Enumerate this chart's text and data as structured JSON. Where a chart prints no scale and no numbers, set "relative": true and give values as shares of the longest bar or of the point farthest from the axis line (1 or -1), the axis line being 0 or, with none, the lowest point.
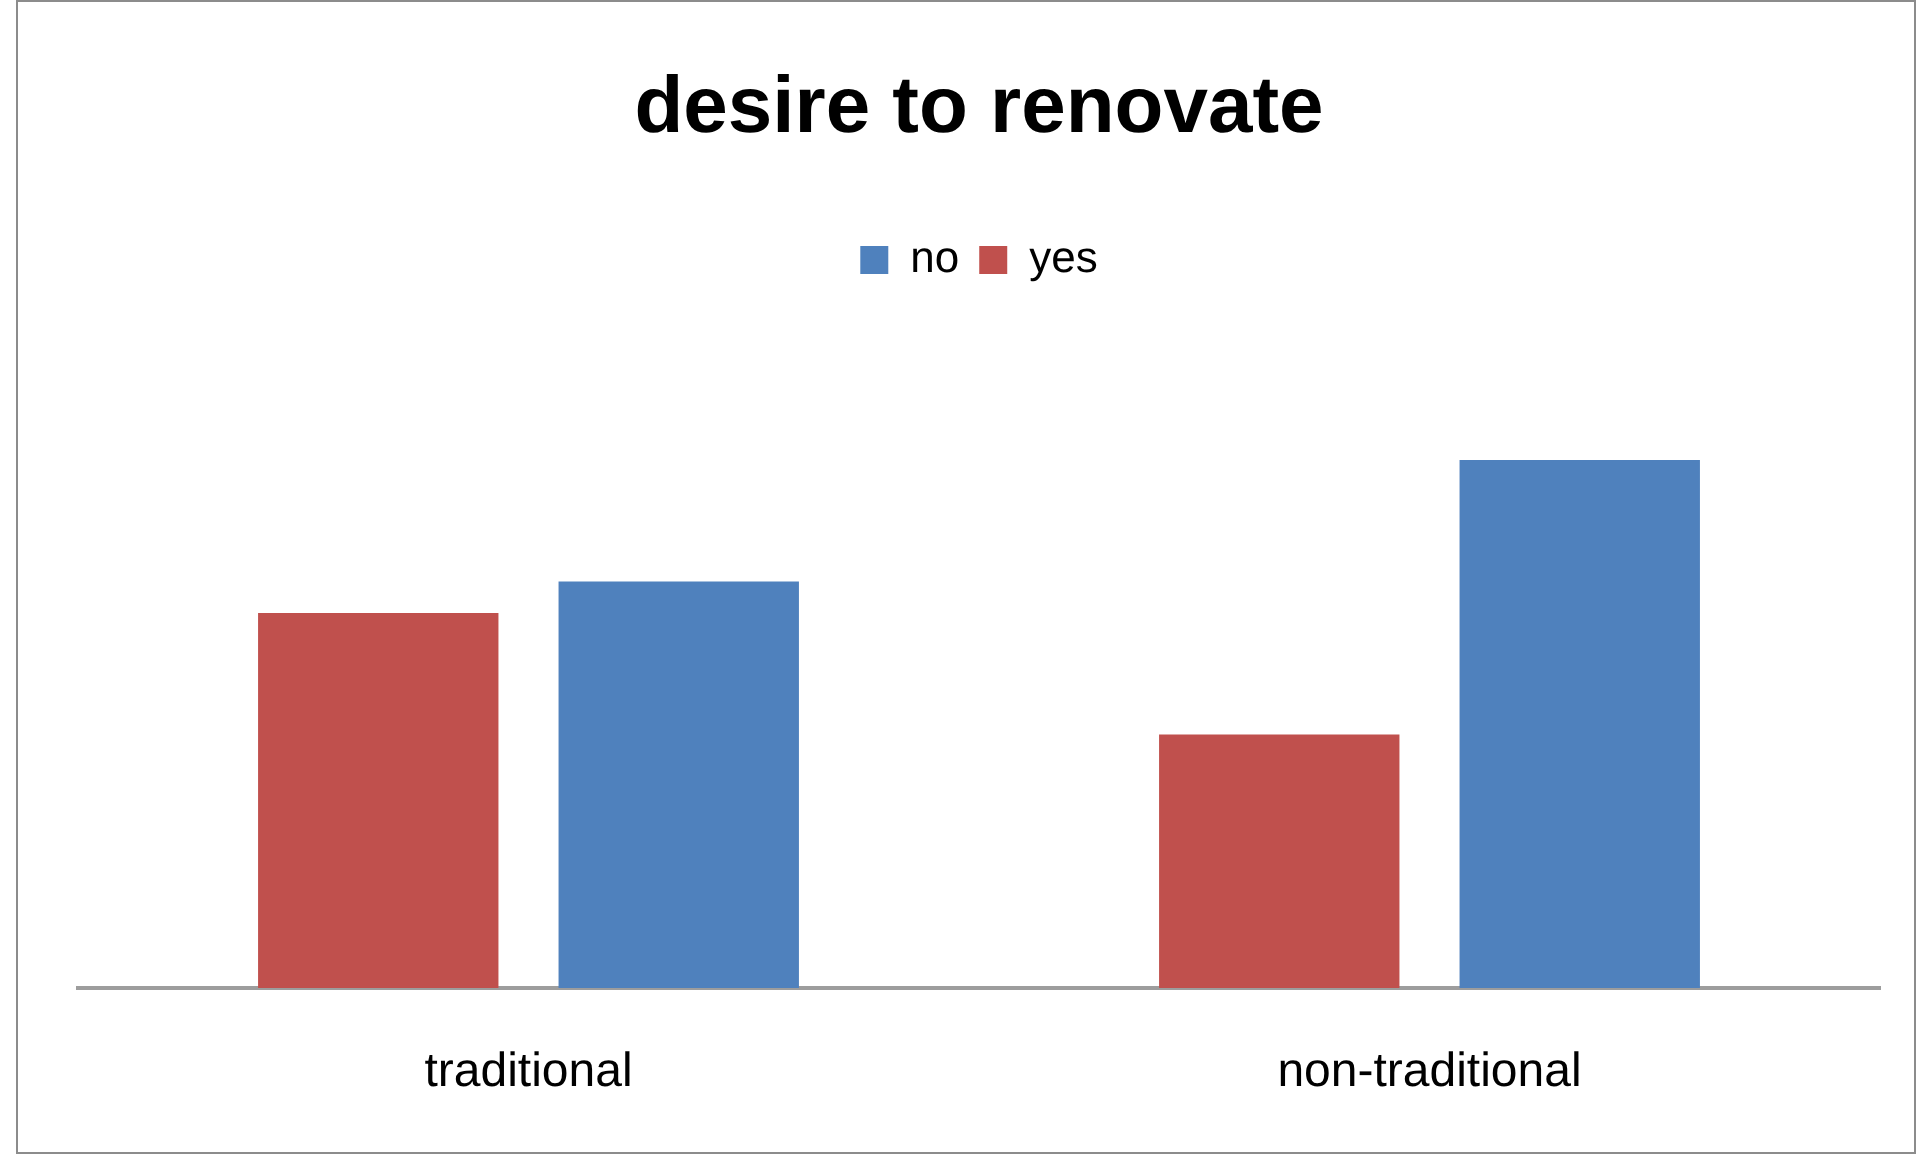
{
  "chart_data": {
    "type": "bar",
    "title": "desire to renovate",
    "relative": true,
    "legend": "top",
    "categories": [
      "traditional",
      "non-traditional"
    ],
    "series": [
      {
        "name": "no",
        "color": "#4f81bd",
        "values": [
          0.77,
          1
        ]
      },
      {
        "name": "yes",
        "color": "#c0504d",
        "values": [
          0.71,
          0.48
        ]
      }
    ]
  }
}
